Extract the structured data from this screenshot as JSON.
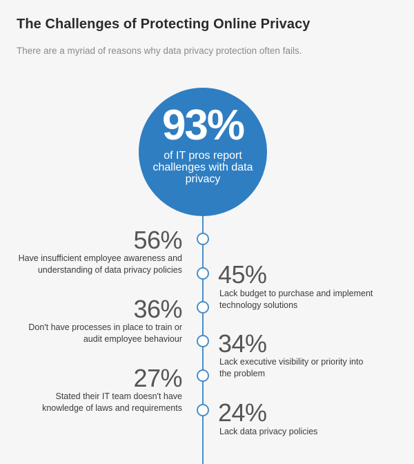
{
  "header": {
    "title": "The Challenges of Protecting Online Privacy",
    "subtitle": "There are a myriad of reasons why data privacy protection often fails."
  },
  "hero": {
    "value": "93%",
    "description": "of IT pros report challenges with data privacy"
  },
  "colors": {
    "accent": "#2f7ec2",
    "line": "#4a8dc9",
    "background": "#f6f6f6"
  },
  "stats": [
    {
      "value": "56%",
      "label": "Have insufficient employee awareness and understanding of data privacy policies",
      "side": "left"
    },
    {
      "value": "45%",
      "label": "Lack budget to purchase and implement technology solutions",
      "side": "right"
    },
    {
      "value": "36%",
      "label": "Don't have processes in place to train or audit employee behaviour",
      "side": "left"
    },
    {
      "value": "34%",
      "label": "Lack executive visibility or priority into the problem",
      "side": "right"
    },
    {
      "value": "27%",
      "label": "Stated their IT team doesn't have knowledge of laws and requirements",
      "side": "left"
    },
    {
      "value": "24%",
      "label": "Lack data privacy policies",
      "side": "right"
    }
  ]
}
